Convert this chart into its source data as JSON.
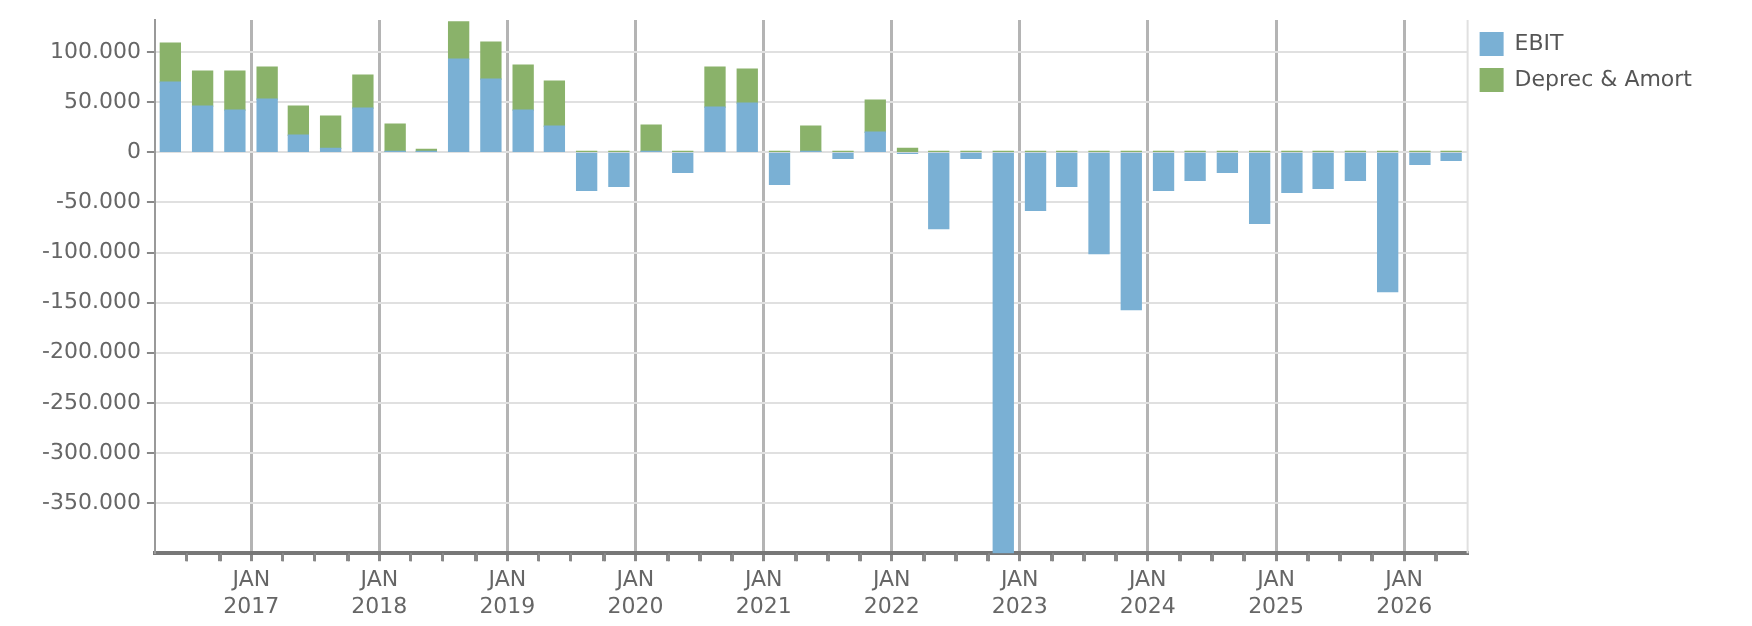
{
  "chart_data": {
    "type": "bar",
    "stacked": true,
    "x": [
      "2016-05-15",
      "2016-08-15",
      "2016-11-15",
      "2017-02-15",
      "2017-05-15",
      "2017-08-15",
      "2017-11-15",
      "2018-02-15",
      "2018-05-15",
      "2018-08-15",
      "2018-11-15",
      "2019-02-15",
      "2019-05-15",
      "2019-08-15",
      "2019-11-15",
      "2020-02-15",
      "2020-05-15",
      "2020-08-15",
      "2020-11-15",
      "2021-02-15",
      "2021-05-15",
      "2021-08-15",
      "2021-11-15",
      "2022-02-15",
      "2022-05-15",
      "2022-08-15",
      "2022-11-15",
      "2023-02-15",
      "2023-05-15",
      "2023-08-15",
      "2023-11-15",
      "2024-02-15",
      "2024-05-15",
      "2024-08-15",
      "2024-11-15",
      "2025-02-15",
      "2025-05-15",
      "2025-08-15",
      "2025-11-15",
      "2026-02-15",
      "2026-05-15"
    ],
    "series": [
      {
        "name": "EBIT",
        "color": "#7ab0d4",
        "values": [
          70000,
          46000,
          42000,
          53000,
          17000,
          4000,
          44000,
          1000,
          1000,
          93000,
          73000,
          42000,
          26000,
          -38000,
          -34000,
          1000,
          -20000,
          45000,
          49000,
          -32000,
          1000,
          -6000,
          20000,
          -1000,
          -76000,
          -6000,
          -400000,
          -58000,
          -34000,
          -101000,
          -157000,
          -38000,
          -28000,
          -20000,
          -71000,
          -40000,
          -36000,
          -28000,
          -139000,
          -12000,
          -8000
        ]
      },
      {
        "name": "Deprec & Amort",
        "color": "#8ab26a",
        "values": [
          39000,
          35000,
          39000,
          32000,
          29000,
          32000,
          33000,
          27000,
          2000,
          37000,
          37000,
          45000,
          45000,
          1000,
          1000,
          26000,
          1000,
          40000,
          34000,
          1000,
          25000,
          1000,
          32000,
          4000,
          1000,
          1000,
          1000,
          1000,
          1000,
          1000,
          1000,
          1000,
          1000,
          1000,
          1000,
          1000,
          1000,
          1000,
          1000,
          1000,
          1000
        ]
      }
    ],
    "xlim": [
      "2016-04",
      "2026-07"
    ],
    "xticks": [
      {
        "value": "2016-07",
        "label": null
      },
      {
        "value": "2016-10",
        "label": null
      },
      {
        "value": "2017-01",
        "label": "JAN 2017"
      },
      {
        "value": "2017-04",
        "label": null
      },
      {
        "value": "2017-07",
        "label": null
      },
      {
        "value": "2017-10",
        "label": null
      },
      {
        "value": "2018-01",
        "label": "JAN 2018"
      },
      {
        "value": "2018-04",
        "label": null
      },
      {
        "value": "2018-07",
        "label": null
      },
      {
        "value": "2018-10",
        "label": null
      },
      {
        "value": "2019-01",
        "label": "JAN 2019"
      },
      {
        "value": "2019-04",
        "label": null
      },
      {
        "value": "2019-07",
        "label": null
      },
      {
        "value": "2019-10",
        "label": null
      },
      {
        "value": "2020-01",
        "label": "JAN 2020"
      },
      {
        "value": "2020-04",
        "label": null
      },
      {
        "value": "2020-07",
        "label": null
      },
      {
        "value": "2020-10",
        "label": null
      },
      {
        "value": "2021-01",
        "label": "JAN 2021"
      },
      {
        "value": "2021-04",
        "label": null
      },
      {
        "value": "2021-07",
        "label": null
      },
      {
        "value": "2021-10",
        "label": null
      },
      {
        "value": "2022-01",
        "label": "JAN 2022"
      },
      {
        "value": "2022-04",
        "label": null
      },
      {
        "value": "2022-07",
        "label": null
      },
      {
        "value": "2022-10",
        "label": null
      },
      {
        "value": "2023-01",
        "label": "JAN 2023"
      },
      {
        "value": "2023-04",
        "label": null
      },
      {
        "value": "2023-07",
        "label": null
      },
      {
        "value": "2023-10",
        "label": null
      },
      {
        "value": "2024-01",
        "label": "JAN 2024"
      },
      {
        "value": "2024-04",
        "label": null
      },
      {
        "value": "2024-07",
        "label": null
      },
      {
        "value": "2024-10",
        "label": null
      },
      {
        "value": "2025-01",
        "label": "JAN 2025"
      },
      {
        "value": "2025-04",
        "label": null
      },
      {
        "value": "2025-07",
        "label": null
      },
      {
        "value": "2025-10",
        "label": null
      },
      {
        "value": "2026-01",
        "label": "JAN 2026"
      },
      {
        "value": "2026-04",
        "label": null
      }
    ],
    "ylim": [
      -400000,
      132000
    ],
    "yticks": [
      {
        "value": -350000,
        "label": "-350.000"
      },
      {
        "value": -300000,
        "label": "-300.000"
      },
      {
        "value": -250000,
        "label": "-250.000"
      },
      {
        "value": -200000,
        "label": "-200.000"
      },
      {
        "value": -150000,
        "label": "-150.000"
      },
      {
        "value": -100000,
        "label": "-100.000"
      },
      {
        "value": -50000,
        "label": "-50.000"
      },
      {
        "value": 0,
        "label": "0"
      },
      {
        "value": 50000,
        "label": "50.000"
      },
      {
        "value": 100000,
        "label": "100.000"
      }
    ],
    "grid": true,
    "legend": "top right"
  }
}
